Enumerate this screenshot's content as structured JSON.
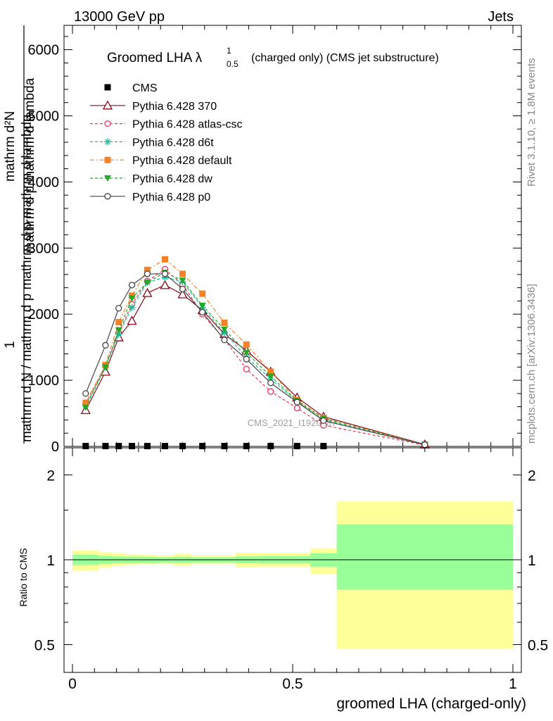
{
  "header": {
    "left": "13000 GeV pp",
    "right": "Jets"
  },
  "side_text": {
    "rivet": "Rivet 3.1.10, ≥ 1.8M events",
    "mcplots": "mcplots.cern.ch [arXiv:1306.3436]"
  },
  "watermark": "CMS_2021_I1920187",
  "chart_data": [
    {
      "type": "line",
      "title": "Groomed LHA λ¹₀.₅ (charged only) (CMS jet substructure)",
      "title_main": "Groomed LHA λ",
      "title_sup": "1",
      "title_sub": "0.5",
      "title_rest": "(charged only) (CMS jet substructure)",
      "ylabel_lines": [
        "mathrm dN",
        "mathrm d p_T mathrm d lambda",
        "1",
        "mathrm d N / mathrm d p_T mathrm d p_T mathrm d lambda"
      ],
      "ylabel_top": "mathrm d²N",
      "ylabel_mid": "mathrm d p  mathrm d lambda",
      "ylabel_mid_sub": "T",
      "ylabel_one": "1",
      "ylabel_bottom": "mathrm d N / mathrm d p  mathrm d p  mathrm d lambda",
      "ylim": [
        0,
        6300
      ],
      "yticks": [
        0,
        1000,
        2000,
        3000,
        4000,
        5000,
        6000
      ],
      "ytick_labels": [
        "0",
        "1000",
        "2000",
        "3000",
        "4000",
        "5000",
        "6000"
      ],
      "xlim": [
        0,
        1
      ],
      "legend_position": "top-left",
      "series": [
        {
          "name": "CMS",
          "color": "#000000",
          "marker": "square",
          "dash": "",
          "x": [
            0.03,
            0.075,
            0.105,
            0.135,
            0.17,
            0.21,
            0.25,
            0.295,
            0.345,
            0.395,
            0.45,
            0.51,
            0.57
          ],
          "y": [
            5,
            5,
            5,
            5,
            5,
            5,
            5,
            5,
            5,
            5,
            5,
            5,
            5
          ]
        },
        {
          "name": "Pythia 6.428 370",
          "color": "#8b0a1a",
          "marker": "triangle-open",
          "dash": "",
          "x": [
            0.03,
            0.075,
            0.105,
            0.135,
            0.17,
            0.21,
            0.25,
            0.295,
            0.345,
            0.395,
            0.45,
            0.51,
            0.57,
            0.8
          ],
          "y": [
            550,
            1130,
            1650,
            1900,
            2320,
            2440,
            2300,
            2060,
            1700,
            1450,
            1130,
            740,
            450,
            30
          ]
        },
        {
          "name": "Pythia 6.428 atlas-csc",
          "color": "#ee3355",
          "marker": "circle-open",
          "dash": "4,3",
          "x": [
            0.03,
            0.075,
            0.105,
            0.135,
            0.17,
            0.21,
            0.25,
            0.295,
            0.345,
            0.395,
            0.45,
            0.51,
            0.57,
            0.8
          ],
          "y": [
            650,
            1220,
            1720,
            2150,
            2500,
            2680,
            2450,
            2000,
            1620,
            1170,
            830,
            580,
            320,
            20
          ]
        },
        {
          "name": "Pythia 6.428 d6t",
          "color": "#1abc9c",
          "marker": "star",
          "dash": "4,3",
          "x": [
            0.03,
            0.075,
            0.105,
            0.135,
            0.17,
            0.21,
            0.25,
            0.295,
            0.345,
            0.395,
            0.45,
            0.51,
            0.57,
            0.8
          ],
          "y": [
            620,
            1200,
            1700,
            2100,
            2480,
            2560,
            2490,
            2100,
            1720,
            1350,
            1020,
            680,
            400,
            25
          ]
        },
        {
          "name": "Pythia 6.428 default",
          "color": "#f58025",
          "marker": "square",
          "dash": "6,3,2,3",
          "x": [
            0.03,
            0.075,
            0.105,
            0.135,
            0.17,
            0.21,
            0.25,
            0.295,
            0.345,
            0.395,
            0.45,
            0.51,
            0.57,
            0.8
          ],
          "y": [
            660,
            1230,
            1880,
            2280,
            2670,
            2830,
            2610,
            2310,
            1870,
            1540,
            1130,
            700,
            430,
            25
          ]
        },
        {
          "name": "Pythia 6.428 dw",
          "color": "#22aa22",
          "marker": "triangle-down",
          "dash": "4,3",
          "x": [
            0.03,
            0.075,
            0.105,
            0.135,
            0.17,
            0.21,
            0.25,
            0.295,
            0.345,
            0.395,
            0.45,
            0.51,
            0.57,
            0.8
          ],
          "y": [
            590,
            1200,
            1760,
            2240,
            2480,
            2630,
            2510,
            2130,
            1770,
            1420,
            1060,
            690,
            420,
            25
          ]
        },
        {
          "name": "Pythia 6.428 p0",
          "color": "#444444",
          "marker": "circle-open",
          "dash": "",
          "x": [
            0.03,
            0.075,
            0.105,
            0.135,
            0.17,
            0.21,
            0.25,
            0.295,
            0.345,
            0.395,
            0.45,
            0.51,
            0.57,
            0.8
          ],
          "y": [
            800,
            1530,
            2090,
            2440,
            2610,
            2610,
            2380,
            2030,
            1610,
            1320,
            960,
            670,
            390,
            25
          ]
        }
      ]
    },
    {
      "type": "area",
      "ylabel": "Ratio to CMS",
      "xlabel": "groomed LHA (charged-only)",
      "xlim": [
        0,
        1
      ],
      "ylim": [
        0.4,
        2.3
      ],
      "yticks": [
        0.5,
        1,
        2
      ],
      "ytick_labels": [
        "0.5",
        "1",
        "2"
      ],
      "xticks": [
        0,
        0.5,
        1
      ],
      "xtick_labels": [
        "0",
        "0.5",
        "1"
      ],
      "reference_line": 1,
      "band_colors": {
        "stat": "#99ff99",
        "total": "#ffff99"
      },
      "bins": [
        {
          "lo": 0.0,
          "hi": 0.06,
          "stat": [
            0.958,
            1.041
          ],
          "total": [
            0.915,
            1.078
          ]
        },
        {
          "lo": 0.06,
          "hi": 0.09,
          "stat": [
            0.968,
            1.032
          ],
          "total": [
            0.937,
            1.062
          ]
        },
        {
          "lo": 0.09,
          "hi": 0.12,
          "stat": [
            0.972,
            1.028
          ],
          "total": [
            0.95,
            1.058
          ]
        },
        {
          "lo": 0.12,
          "hi": 0.15,
          "stat": [
            0.972,
            1.026
          ],
          "total": [
            0.958,
            1.045
          ]
        },
        {
          "lo": 0.15,
          "hi": 0.19,
          "stat": [
            0.975,
            1.025
          ],
          "total": [
            0.963,
            1.04
          ]
        },
        {
          "lo": 0.19,
          "hi": 0.23,
          "stat": [
            0.978,
            1.022
          ],
          "total": [
            0.967,
            1.036
          ]
        },
        {
          "lo": 0.23,
          "hi": 0.27,
          "stat": [
            0.975,
            1.025
          ],
          "total": [
            0.955,
            1.05
          ]
        },
        {
          "lo": 0.27,
          "hi": 0.32,
          "stat": [
            0.978,
            1.021
          ],
          "total": [
            0.968,
            1.036
          ]
        },
        {
          "lo": 0.32,
          "hi": 0.37,
          "stat": [
            0.978,
            1.021
          ],
          "total": [
            0.968,
            1.036
          ]
        },
        {
          "lo": 0.37,
          "hi": 0.42,
          "stat": [
            0.972,
            1.028
          ],
          "total": [
            0.94,
            1.06
          ]
        },
        {
          "lo": 0.42,
          "hi": 0.48,
          "stat": [
            0.97,
            1.03
          ],
          "total": [
            0.945,
            1.055
          ]
        },
        {
          "lo": 0.48,
          "hi": 0.54,
          "stat": [
            0.97,
            1.03
          ],
          "total": [
            0.945,
            1.058
          ]
        },
        {
          "lo": 0.54,
          "hi": 0.6,
          "stat": [
            0.945,
            1.055
          ],
          "total": [
            0.89,
            1.098
          ]
        },
        {
          "lo": 0.6,
          "hi": 1.0,
          "stat": [
            0.785,
            1.335
          ],
          "total": [
            0.483,
            1.61
          ]
        }
      ]
    }
  ]
}
